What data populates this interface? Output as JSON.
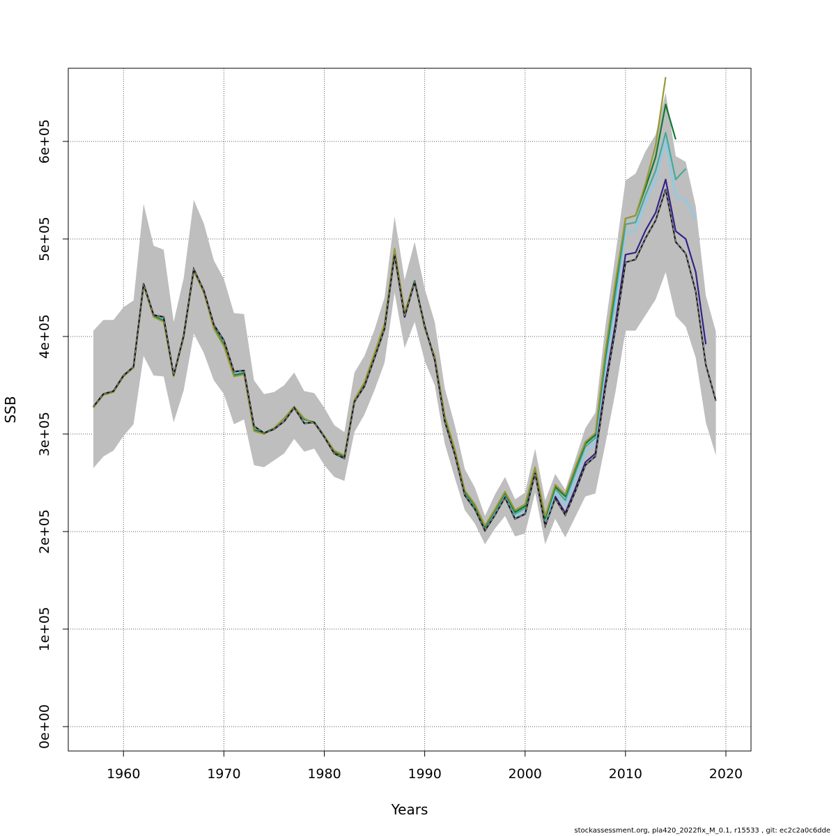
{
  "chart_data": {
    "type": "line",
    "title": "",
    "xlabel": "Years",
    "ylabel": "SSB",
    "xlim": [
      1954.5,
      2022.5
    ],
    "ylim": [
      -25000,
      675000
    ],
    "xticks": [
      1960,
      1970,
      1980,
      1990,
      2000,
      2010,
      2020
    ],
    "xtick_labels": [
      "1960",
      "1970",
      "1980",
      "1990",
      "2000",
      "2010",
      "2020"
    ],
    "yticks": [
      0,
      100000,
      200000,
      300000,
      400000,
      500000,
      600000
    ],
    "ytick_labels": [
      "0e+00",
      "1e+05",
      "2e+05",
      "3e+05",
      "4e+05",
      "5e+05",
      "6e+05"
    ],
    "grid": true,
    "confidence_band": {
      "x": [
        1957,
        1958,
        1959,
        1960,
        1961,
        1962,
        1963,
        1964,
        1965,
        1966,
        1967,
        1968,
        1969,
        1970,
        1971,
        1972,
        1973,
        1974,
        1975,
        1976,
        1977,
        1978,
        1979,
        1980,
        1981,
        1982,
        1983,
        1984,
        1985,
        1986,
        1987,
        1988,
        1989,
        1990,
        1991,
        1992,
        1993,
        1994,
        1995,
        1996,
        1997,
        1998,
        1999,
        2000,
        2001,
        2002,
        2003,
        2004,
        2005,
        2006,
        2007,
        2008,
        2009,
        2010,
        2011,
        2012,
        2013,
        2014,
        2015,
        2016,
        2017,
        2018,
        2019
      ],
      "lower": [
        265000,
        277000,
        283000,
        298000,
        310000,
        380000,
        360000,
        359000,
        312000,
        345000,
        403000,
        383000,
        355000,
        341000,
        310000,
        315000,
        268000,
        266000,
        273000,
        280000,
        295000,
        282000,
        285000,
        268000,
        256000,
        252000,
        302000,
        320000,
        345000,
        373000,
        445000,
        388000,
        415000,
        375000,
        350000,
        290000,
        255000,
        222000,
        208000,
        187000,
        203000,
        216000,
        195000,
        198000,
        240000,
        187000,
        213000,
        194000,
        215000,
        236000,
        239000,
        290000,
        343000,
        406000,
        406000,
        422000,
        438000,
        466000,
        421000,
        410000,
        378000,
        312000,
        278000
      ],
      "upper": [
        406000,
        417000,
        417000,
        430000,
        437000,
        536000,
        493000,
        489000,
        415000,
        460000,
        540000,
        516000,
        478000,
        459000,
        424000,
        423000,
        355000,
        341000,
        343000,
        350000,
        363000,
        344000,
        342000,
        327000,
        309000,
        302000,
        363000,
        380000,
        407000,
        440000,
        523000,
        458000,
        497000,
        449000,
        415000,
        347000,
        309000,
        264000,
        245000,
        216000,
        238000,
        256000,
        233000,
        240000,
        285000,
        232000,
        259000,
        243000,
        274000,
        306000,
        322000,
        411000,
        484000,
        560000,
        567000,
        590000,
        607000,
        650000,
        585000,
        579000,
        533000,
        442000,
        405000
      ]
    },
    "series": [
      {
        "color": "#1a1a1a",
        "dashed": true,
        "x": [
          1957,
          1958,
          1959,
          1960,
          1961,
          1962,
          1963,
          1964,
          1965,
          1966,
          1967,
          1968,
          1969,
          1970,
          1971,
          1972,
          1973,
          1974,
          1975,
          1976,
          1977,
          1978,
          1979,
          1980,
          1981,
          1982,
          1983,
          1984,
          1985,
          1986,
          1987,
          1988,
          1989,
          1990,
          1991,
          1992,
          1993,
          1994,
          1995,
          1996,
          1997,
          1998,
          1999,
          2000,
          2001,
          2002,
          2003,
          2004,
          2005,
          2006,
          2007,
          2008,
          2009,
          2010,
          2011,
          2012,
          2013,
          2014,
          2015,
          2016,
          2017,
          2018,
          2019
        ],
        "values": [
          328000,
          341000,
          344000,
          360000,
          369000,
          454000,
          422000,
          420000,
          360000,
          401000,
          469000,
          447000,
          412000,
          396000,
          364000,
          365000,
          308000,
          301000,
          305000,
          313000,
          327000,
          311000,
          312000,
          297000,
          280000,
          275000,
          333000,
          349000,
          378000,
          408000,
          484000,
          420000,
          456000,
          411000,
          376000,
          313000,
          279000,
          237000,
          223000,
          201000,
          217000,
          235000,
          213000,
          218000,
          260000,
          206000,
          234000,
          217000,
          241000,
          268000,
          277000,
          348000,
          408000,
          476000,
          479000,
          501000,
          519000,
          551000,
          497000,
          485000,
          446000,
          371000,
          334000
        ]
      },
      {
        "color": "#332288",
        "dashed": false,
        "x": [
          1957,
          1958,
          1959,
          1960,
          1961,
          1962,
          1963,
          1964,
          1965,
          1966,
          1967,
          1968,
          1969,
          1970,
          1971,
          1972,
          1973,
          1974,
          1975,
          1976,
          1977,
          1978,
          1979,
          1980,
          1981,
          1982,
          1983,
          1984,
          1985,
          1986,
          1987,
          1988,
          1989,
          1990,
          1991,
          1992,
          1993,
          1994,
          1995,
          1996,
          1997,
          1998,
          1999,
          2000,
          2001,
          2002,
          2003,
          2004,
          2005,
          2006,
          2007,
          2008,
          2009,
          2010,
          2011,
          2012,
          2013,
          2014,
          2015,
          2016,
          2017,
          2018
        ],
        "values": [
          328000,
          341000,
          344000,
          360000,
          369000,
          454000,
          422000,
          420000,
          360000,
          401000,
          469000,
          447000,
          412000,
          396000,
          364000,
          365000,
          308000,
          301000,
          305000,
          313000,
          327000,
          311000,
          312000,
          297000,
          280000,
          275000,
          333000,
          349000,
          378000,
          408000,
          484000,
          420000,
          456000,
          411000,
          376000,
          313000,
          279000,
          237000,
          223000,
          201000,
          217000,
          235000,
          213000,
          218000,
          260000,
          206000,
          236000,
          219000,
          244000,
          271000,
          280000,
          352000,
          413000,
          484000,
          486000,
          509000,
          527000,
          561000,
          508000,
          500000,
          466000,
          392000
        ]
      },
      {
        "color": "#88ccee",
        "dashed": false,
        "x": [
          1957,
          1958,
          1959,
          1960,
          1961,
          1962,
          1963,
          1964,
          1965,
          1966,
          1967,
          1968,
          1969,
          1970,
          1971,
          1972,
          1973,
          1974,
          1975,
          1976,
          1977,
          1978,
          1979,
          1980,
          1981,
          1982,
          1983,
          1984,
          1985,
          1986,
          1987,
          1988,
          1989,
          1990,
          1991,
          1992,
          1993,
          1994,
          1995,
          1996,
          1997,
          1998,
          1999,
          2000,
          2001,
          2002,
          2003,
          2004,
          2005,
          2006,
          2007,
          2008,
          2009,
          2010,
          2011,
          2012,
          2013,
          2014,
          2015,
          2016,
          2017
        ],
        "values": [
          328000,
          341000,
          344000,
          360000,
          369000,
          453000,
          421000,
          418000,
          360000,
          400000,
          468000,
          446000,
          410000,
          393000,
          362000,
          364000,
          306000,
          301000,
          306000,
          315000,
          328000,
          314000,
          312000,
          298000,
          281000,
          276000,
          333000,
          350000,
          380000,
          410000,
          486000,
          422000,
          457000,
          410000,
          377000,
          316000,
          281000,
          239000,
          225000,
          203000,
          219000,
          237000,
          215000,
          221000,
          262000,
          209000,
          240000,
          227000,
          253000,
          281000,
          291000,
          367000,
          433000,
          507000,
          509000,
          537000,
          560000,
          600000,
          543000,
          540000,
          521000
        ]
      },
      {
        "color": "#44aa99",
        "dashed": false,
        "x": [
          1957,
          1958,
          1959,
          1960,
          1961,
          1962,
          1963,
          1964,
          1965,
          1966,
          1967,
          1968,
          1969,
          1970,
          1971,
          1972,
          1973,
          1974,
          1975,
          1976,
          1977,
          1978,
          1979,
          1980,
          1981,
          1982,
          1983,
          1984,
          1985,
          1986,
          1987,
          1988,
          1989,
          1990,
          1991,
          1992,
          1993,
          1994,
          1995,
          1996,
          1997,
          1998,
          1999,
          2000,
          2001,
          2002,
          2003,
          2004,
          2005,
          2006,
          2007,
          2008,
          2009,
          2010,
          2011,
          2012,
          2013,
          2014,
          2015,
          2016
        ],
        "values": [
          328000,
          341000,
          344000,
          360000,
          369000,
          453000,
          421000,
          417000,
          360000,
          400000,
          468000,
          446000,
          410000,
          392000,
          361000,
          363000,
          305000,
          301000,
          306000,
          316000,
          328000,
          315000,
          312000,
          298000,
          282000,
          277000,
          333000,
          351000,
          381000,
          411000,
          488000,
          423000,
          457000,
          409000,
          378000,
          317000,
          282000,
          240000,
          226000,
          204000,
          221000,
          239000,
          218000,
          224000,
          264000,
          212000,
          244000,
          232000,
          260000,
          287000,
          296000,
          375000,
          443000,
          515000,
          517000,
          545000,
          570000,
          609000,
          561000,
          572000
        ]
      },
      {
        "color": "#117733",
        "dashed": false,
        "x": [
          1957,
          1958,
          1959,
          1960,
          1961,
          1962,
          1963,
          1964,
          1965,
          1966,
          1967,
          1968,
          1969,
          1970,
          1971,
          1972,
          1973,
          1974,
          1975,
          1976,
          1977,
          1978,
          1979,
          1980,
          1981,
          1982,
          1983,
          1984,
          1985,
          1986,
          1987,
          1988,
          1989,
          1990,
          1991,
          1992,
          1993,
          1994,
          1995,
          1996,
          1997,
          1998,
          1999,
          2000,
          2001,
          2002,
          2003,
          2004,
          2005,
          2006,
          2007,
          2008,
          2009,
          2010,
          2011,
          2012,
          2013,
          2014,
          2015
        ],
        "values": [
          328000,
          341000,
          344000,
          360000,
          369000,
          453000,
          421000,
          416000,
          360000,
          400000,
          468000,
          446000,
          409000,
          391000,
          360000,
          362000,
          304000,
          301000,
          306000,
          316000,
          328000,
          315000,
          312000,
          298000,
          282000,
          277000,
          334000,
          352000,
          382000,
          412000,
          489000,
          424000,
          457000,
          409000,
          379000,
          318000,
          283000,
          241000,
          227000,
          205000,
          222000,
          240000,
          220000,
          226000,
          265000,
          214000,
          246000,
          236000,
          264000,
          290000,
          299000,
          381000,
          452000,
          521000,
          524000,
          553000,
          584000,
          638000,
          602000
        ]
      },
      {
        "color": "#999933",
        "dashed": false,
        "x": [
          1957,
          1958,
          1959,
          1960,
          1961,
          1962,
          1963,
          1964,
          1965,
          1966,
          1967,
          1968,
          1969,
          1970,
          1971,
          1972,
          1973,
          1974,
          1975,
          1976,
          1977,
          1978,
          1979,
          1980,
          1981,
          1982,
          1983,
          1984,
          1985,
          1986,
          1987,
          1988,
          1989,
          1990,
          1991,
          1992,
          1993,
          1994,
          1995,
          1996,
          1997,
          1998,
          1999,
          2000,
          2001,
          2002,
          2003,
          2004,
          2005,
          2006,
          2007,
          2008,
          2009,
          2010,
          2011,
          2012,
          2013,
          2014
        ],
        "values": [
          327000,
          340000,
          343000,
          359000,
          368000,
          452000,
          420000,
          415000,
          359000,
          399000,
          467000,
          445000,
          408000,
          390000,
          359000,
          361000,
          303000,
          300000,
          306000,
          316000,
          328000,
          316000,
          311000,
          298000,
          283000,
          278000,
          335000,
          353000,
          383000,
          413000,
          490000,
          425000,
          456000,
          408000,
          380000,
          319000,
          284000,
          242000,
          228000,
          206000,
          223000,
          241000,
          222000,
          228000,
          266000,
          216000,
          248000,
          238000,
          266000,
          292000,
          301000,
          385000,
          456000,
          521000,
          524000,
          557000,
          596000,
          666000
        ]
      }
    ]
  },
  "footer": {
    "text": "stockassessment.org, pla420_2022fix_M_0.1, r15533 , git: ec2c2a0c6dde"
  }
}
